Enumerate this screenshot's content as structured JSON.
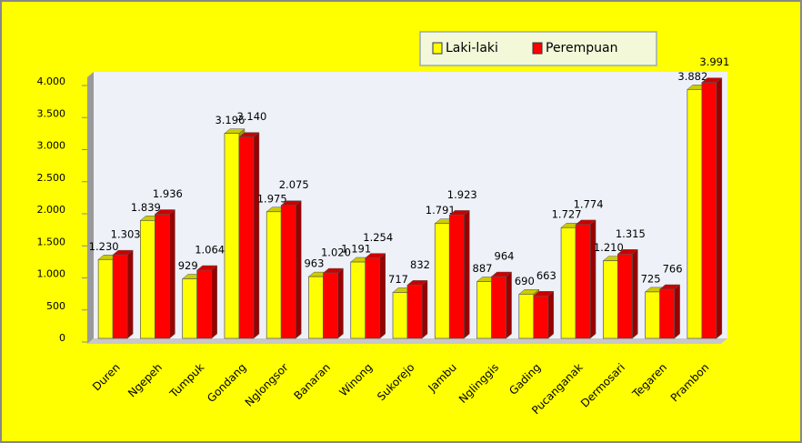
{
  "chart_data": {
    "type": "bar",
    "categories": [
      "Duren",
      "Ngepeh",
      "Tumpuk",
      "Gondang",
      "Nglongsor",
      "Banaran",
      "Winong",
      "Sukorejo",
      "Jambu",
      "Nglinggis",
      "Gading",
      "Pucanganak",
      "Dermosari",
      "Tegaren",
      "Prambon"
    ],
    "series": [
      {
        "name": "Laki-laki",
        "color": "#ffff00",
        "values": [
          1230,
          1839,
          929,
          3196,
          1975,
          963,
          1191,
          717,
          1791,
          887,
          690,
          1727,
          1210,
          725,
          3882
        ],
        "value_labels": [
          "1.230",
          "1.839",
          "929",
          "3.196",
          "1.975",
          "963",
          "1.191",
          "717",
          "1.791",
          "887",
          "690",
          "1.727",
          "1.210",
          "725",
          "3.882"
        ]
      },
      {
        "name": "Perempuan",
        "color": "#ff0000",
        "values": [
          1303,
          1936,
          1064,
          3140,
          2075,
          1020,
          1254,
          832,
          1923,
          964,
          663,
          1774,
          1315,
          766,
          3991
        ],
        "value_labels": [
          "1.303",
          "1.936",
          "1.064",
          "3.140",
          "2.075",
          "1.020",
          "1.254",
          "832",
          "1.923",
          "964",
          "663",
          "1.774",
          "1.315",
          "766",
          "3.991"
        ]
      }
    ],
    "ylim": [
      0,
      4000
    ],
    "yticks": [
      0,
      500,
      {
        "value": 1000,
        "label": "1.000"
      },
      {
        "value": 1500,
        "label": "1.500"
      },
      {
        "value": 2000,
        "label": "2.000"
      },
      {
        "value": 2500,
        "label": "2.500"
      },
      {
        "value": 3000,
        "label": "3.000"
      },
      {
        "value": 3500,
        "label": "3.500"
      },
      {
        "value": 4000,
        "label": "4.000"
      }
    ],
    "legend": "top-right"
  }
}
